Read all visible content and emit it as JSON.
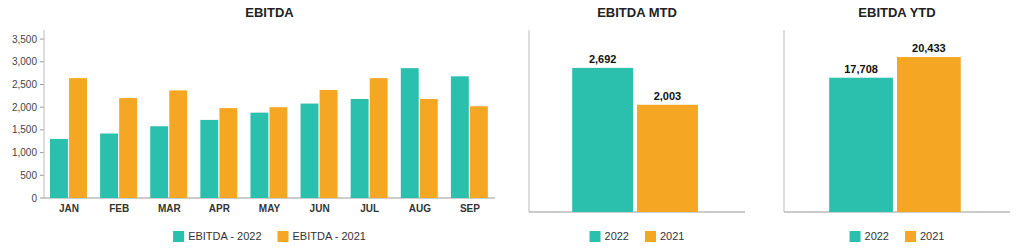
{
  "chart_data": [
    {
      "type": "bar",
      "title": "EBITDA",
      "categories": [
        "JAN",
        "FEB",
        "MAR",
        "APR",
        "MAY",
        "JUN",
        "JUL",
        "AUG",
        "SEP"
      ],
      "series": [
        {
          "name": "EBITDA - 2022",
          "color": "#2bbfad",
          "values": [
            1300,
            1420,
            1580,
            1720,
            1880,
            2080,
            2180,
            2860,
            2680
          ]
        },
        {
          "name": "EBITDA - 2021",
          "color": "#f5a623",
          "values": [
            2640,
            2200,
            2370,
            1980,
            2000,
            2380,
            2640,
            2180,
            2020
          ]
        }
      ],
      "ylim": [
        0,
        3700
      ],
      "yticks": [
        0,
        500,
        {
          "value": 1000,
          "label": "1,000"
        },
        {
          "value": 1500,
          "label": "1,500"
        },
        {
          "value": 2000,
          "label": "2,000"
        },
        {
          "value": 2500,
          "label": "2,500"
        },
        {
          "value": 3000,
          "label": "3,000"
        },
        {
          "value": 3500,
          "label": "3,500"
        }
      ],
      "grid": false,
      "legend": "bottom"
    },
    {
      "type": "bar",
      "title": "EBITDA MTD",
      "categories": [
        null
      ],
      "series": [
        {
          "name": "2022",
          "color": "#2bbfad",
          "values": [
            2692
          ],
          "value_labels": [
            "2,692"
          ]
        },
        {
          "name": "2021",
          "color": "#f5a623",
          "values": [
            2003
          ],
          "value_labels": [
            "2,003"
          ]
        }
      ],
      "ylim": [
        0,
        3400
      ],
      "grid": false,
      "legend": "bottom",
      "data_labels": true,
      "tick_labels": false
    },
    {
      "type": "bar",
      "title": "EBITDA YTD",
      "categories": [
        null
      ],
      "series": [
        {
          "name": "2022",
          "color": "#2bbfad",
          "values": [
            17708
          ],
          "value_labels": [
            "17,708"
          ]
        },
        {
          "name": "2021",
          "color": "#f5a623",
          "values": [
            20433
          ],
          "value_labels": [
            "20,433"
          ]
        }
      ],
      "ylim": [
        0,
        24000
      ],
      "grid": false,
      "legend": "bottom",
      "data_labels": true,
      "tick_labels": false
    }
  ]
}
